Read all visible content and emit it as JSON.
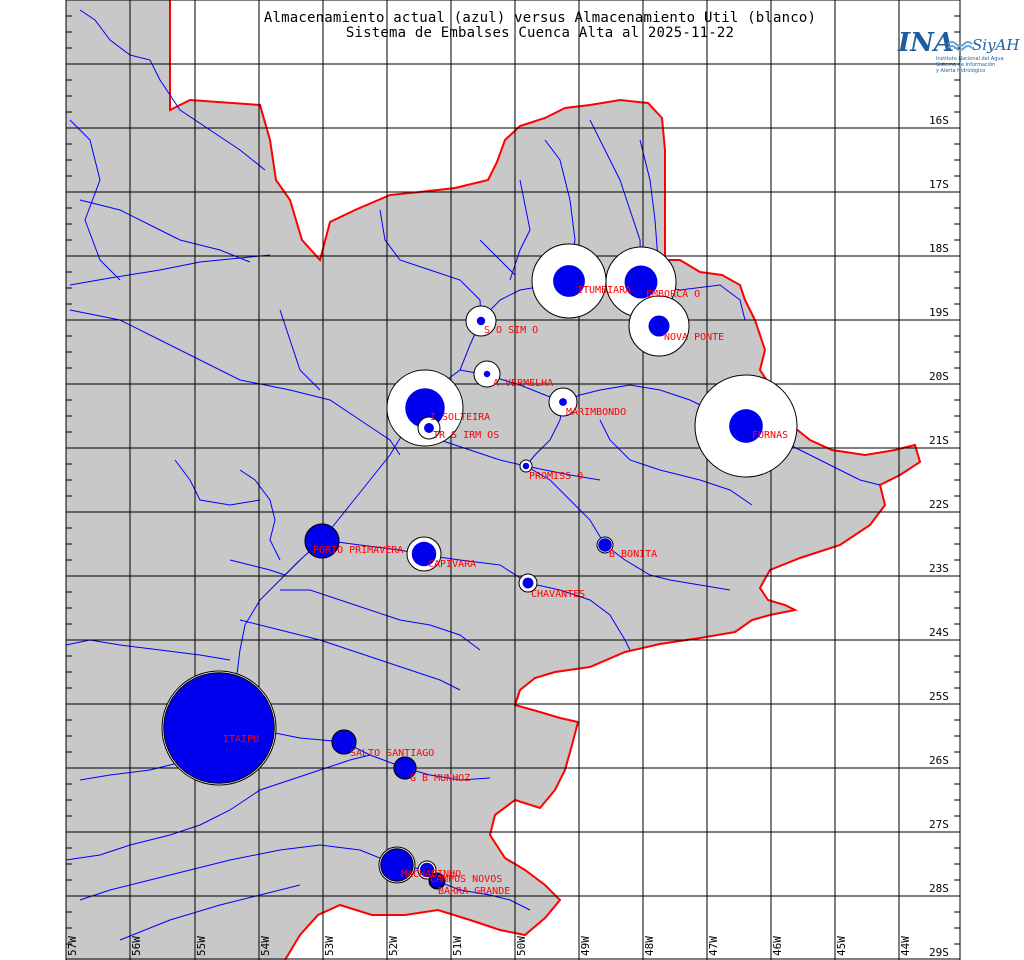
{
  "title": {
    "line1": "Almacenamiento actual (azul) versus Almacenamiento Util (blanco)",
    "line2": "Sistema de Embalses Cuenca Alta al 2025-11-22"
  },
  "logo": {
    "ina": "INA",
    "siyah": "SiyAH",
    "subtitle_line1": "Instituto Nacional del Agua",
    "subtitle_line2": "Sistema de Información",
    "subtitle_line3": "y Alerta Hidrológico"
  },
  "latitudes": [
    "16S",
    "17S",
    "18S",
    "19S",
    "20S",
    "21S",
    "22S",
    "23S",
    "24S",
    "25S",
    "26S",
    "27S",
    "28S",
    "29S"
  ],
  "longitudes": [
    "57W",
    "56W",
    "55W",
    "54W",
    "53W",
    "52W",
    "51W",
    "50W",
    "49W",
    "48W",
    "47W",
    "46W",
    "45W",
    "44W"
  ],
  "colors": {
    "land": "#c8c8c8",
    "border": "#ff0000",
    "rivers": "#0000ff",
    "current_storage": "#0000ee",
    "useful_storage": "#ffffff",
    "labels": "#ff0000",
    "grid": "#000000"
  },
  "reservoirs": [
    {
      "id": "itumbiara",
      "label": "ITUMBIARA",
      "useful": 1,
      "current": 0.43
    },
    {
      "id": "emborcacao",
      "label": "EMBORCA   O",
      "useful": 1,
      "current": 0.47
    },
    {
      "id": "sao-simao",
      "label": "S  O SIM  O",
      "useful": 1,
      "current": 0.28
    },
    {
      "id": "nova-ponte",
      "label": "NOVA PONTE",
      "useful": 1,
      "current": 0.35
    },
    {
      "id": "agua-vermelha",
      "label": "A  VERMELHA",
      "useful": 1,
      "current": 0.25
    },
    {
      "id": "ilha-solteira",
      "label": "I  SOLTEIRA",
      "useful": 1,
      "current": 0.52
    },
    {
      "id": "tres-irmaos",
      "label": "TR  S IRM  OS",
      "useful": 1,
      "current": 0.45
    },
    {
      "id": "marimbondo",
      "label": "MARIMBONDO",
      "useful": 1,
      "current": 0.28
    },
    {
      "id": "furnas",
      "label": "FURNAS",
      "useful": 1,
      "current": 0.33
    },
    {
      "id": "promissao",
      "label": "PROMISS  O",
      "useful": 1,
      "current": 0.55
    },
    {
      "id": "porto-primavera",
      "label": "PORTO PRIMAVERA",
      "useful": 1,
      "current": 1.0
    },
    {
      "id": "capivara",
      "label": "CAPIVARA",
      "useful": 1,
      "current": 0.72
    },
    {
      "id": "b-bonita",
      "label": "B  BONITA",
      "useful": 1,
      "current": 0.85
    },
    {
      "id": "chavantes",
      "label": "CHAVANTES",
      "useful": 1,
      "current": 0.6
    },
    {
      "id": "itaipu",
      "label": "ITAIPU",
      "useful": 1,
      "current": 0.97
    },
    {
      "id": "salto-santiago",
      "label": "SALTO SANTIAGO",
      "useful": 1,
      "current": 1.0
    },
    {
      "id": "gbmunhoz",
      "label": "G  B  MUNHOZ",
      "useful": 1,
      "current": 1.0
    },
    {
      "id": "machadinho",
      "label": "MACHADINHO",
      "useful": 1,
      "current": 0.9
    },
    {
      "id": "campos-novos",
      "label": "CAMPOS NOVOS",
      "useful": 1,
      "current": 0.8
    },
    {
      "id": "barra-grande",
      "label": "BARRA GRANDE",
      "useful": 1,
      "current": 0.9
    }
  ]
}
